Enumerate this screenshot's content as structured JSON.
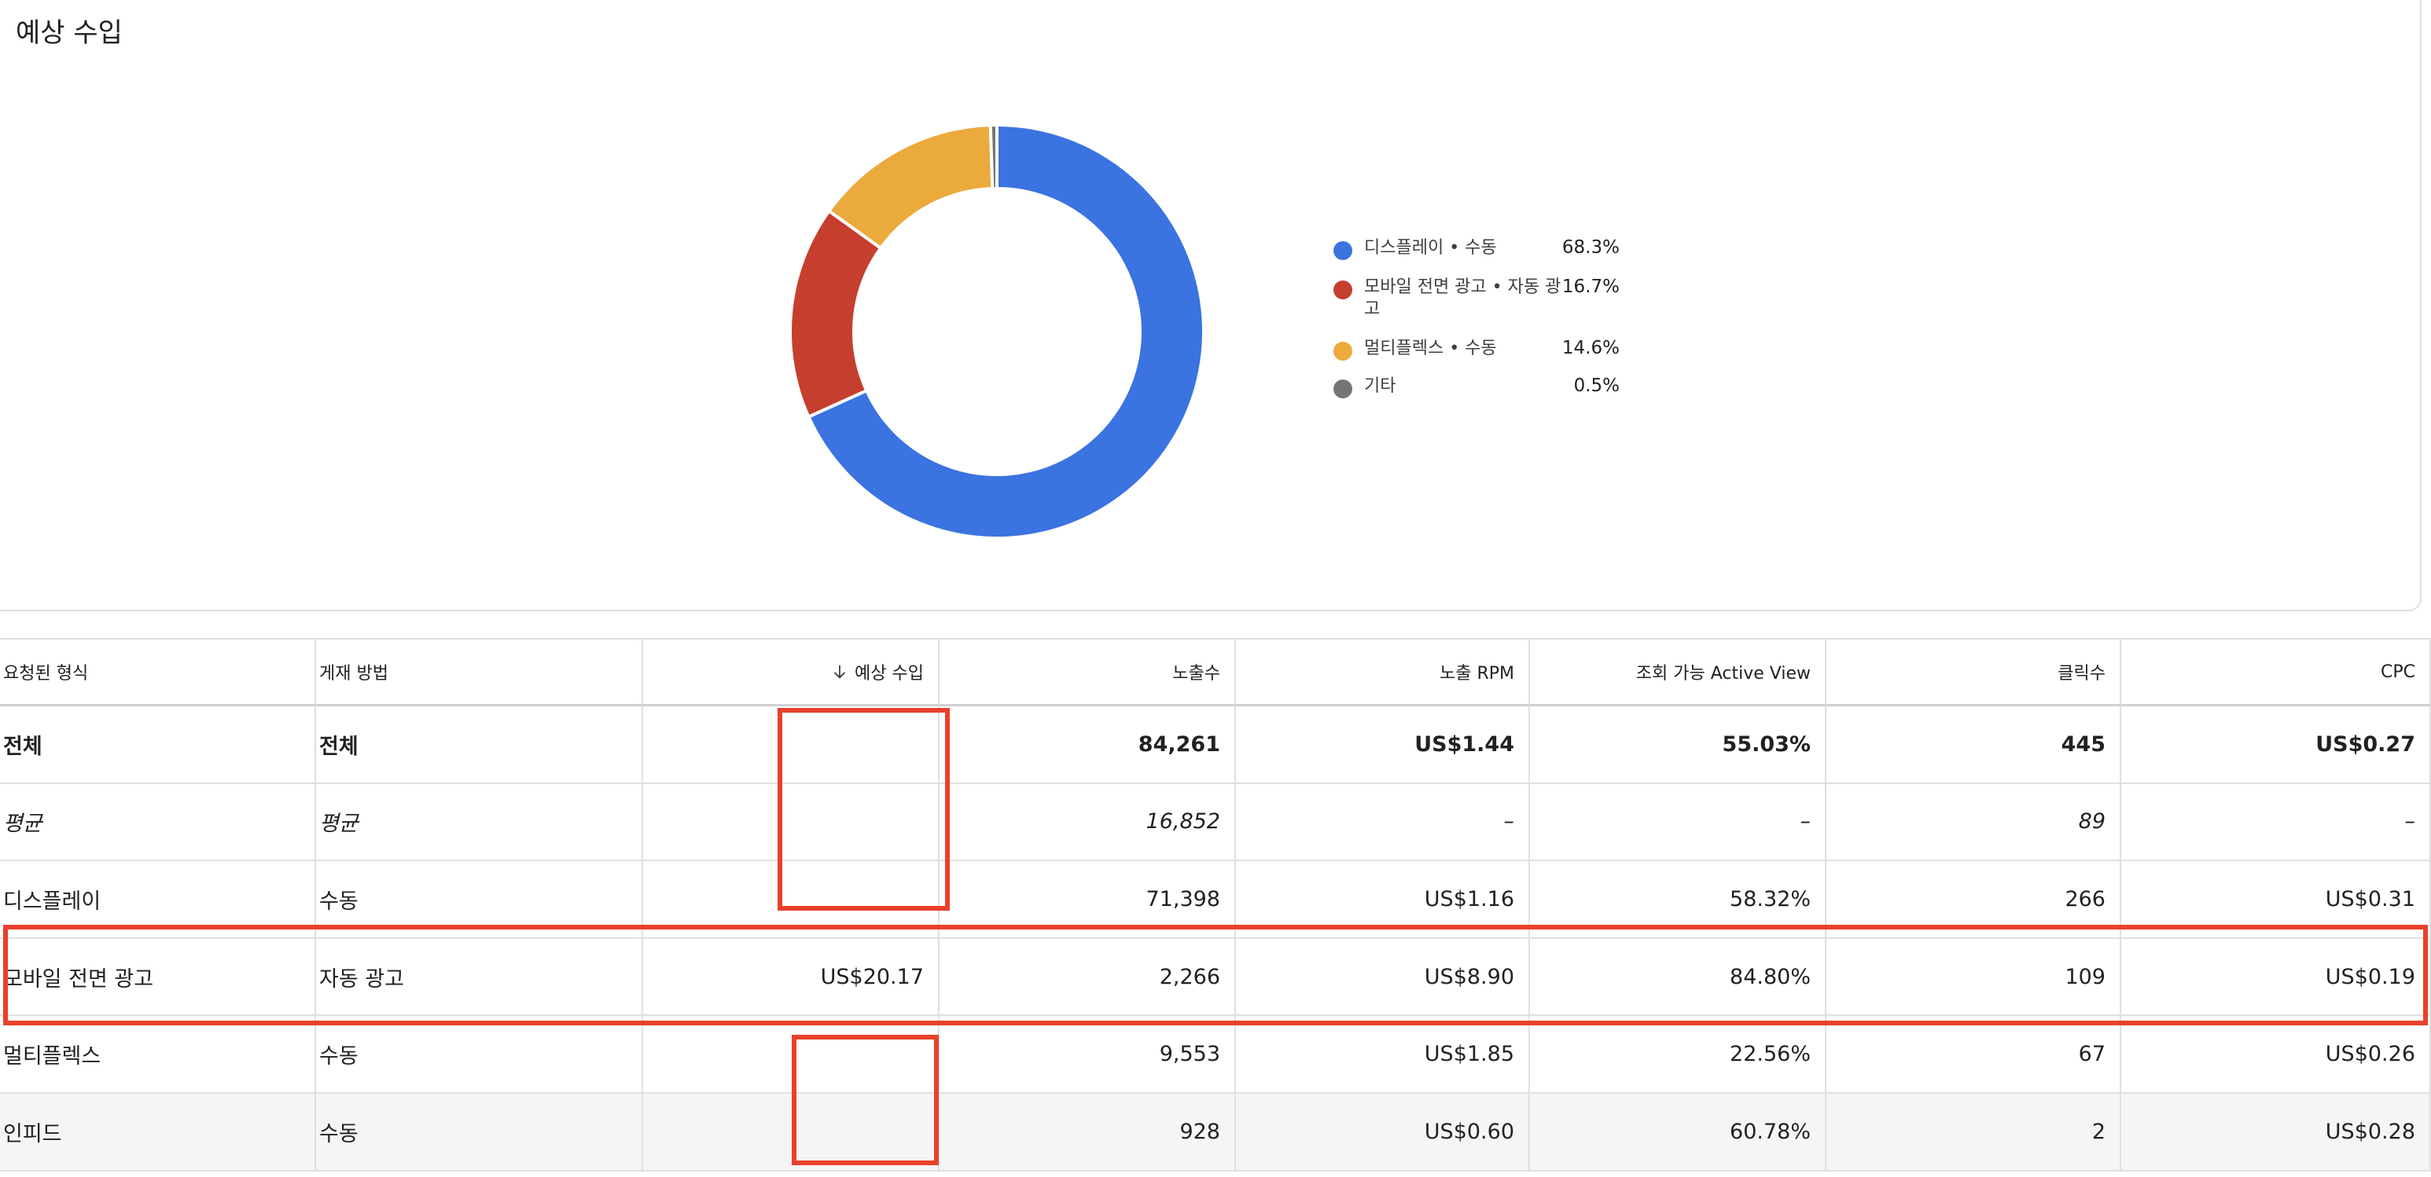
{
  "header": {
    "title": "예상 수입"
  },
  "chart_data": {
    "type": "pie",
    "donut": true,
    "categories": [
      "디스플레이 • 수동",
      "모바일 전면 광고 • 자동 광고",
      "멀티플렉스 • 수동",
      "기타"
    ],
    "values": [
      68.3,
      16.7,
      14.6,
      0.5
    ],
    "value_labels": [
      "68.3%",
      "16.7%",
      "14.6%",
      "0.5%"
    ],
    "colors": [
      "#3b73e0",
      "#c63e2e",
      "#ebaa3c",
      "#757575"
    ]
  },
  "table": {
    "columns": [
      "요청된 형식",
      "게재 방법",
      "예상 수입",
      "노출수",
      "노출 RPM",
      "조회 가능 Active View",
      "클릭수",
      "CPC"
    ],
    "rows": [
      [
        "전체",
        "전체",
        null,
        "84,261",
        "US$1.44",
        "55.03%",
        "445",
        "US$0.27"
      ],
      [
        "평균",
        "평균",
        null,
        "16,852",
        "–",
        "–",
        "89",
        "–"
      ],
      [
        "디스플레이",
        "수동",
        null,
        "71,398",
        "US$1.16",
        "58.32%",
        "266",
        "US$0.31"
      ],
      [
        "모바일 전면 광고",
        "자동 광고",
        "US$20.17",
        "2,266",
        "US$8.90",
        "84.80%",
        "109",
        "US$0.19"
      ],
      [
        "멀티플렉스",
        "수동",
        null,
        "9,553",
        "US$1.85",
        "22.56%",
        "67",
        "US$0.26"
      ],
      [
        "인피드",
        "수동",
        null,
        "928",
        "US$0.60",
        "60.78%",
        "2",
        "US$0.28"
      ]
    ]
  }
}
